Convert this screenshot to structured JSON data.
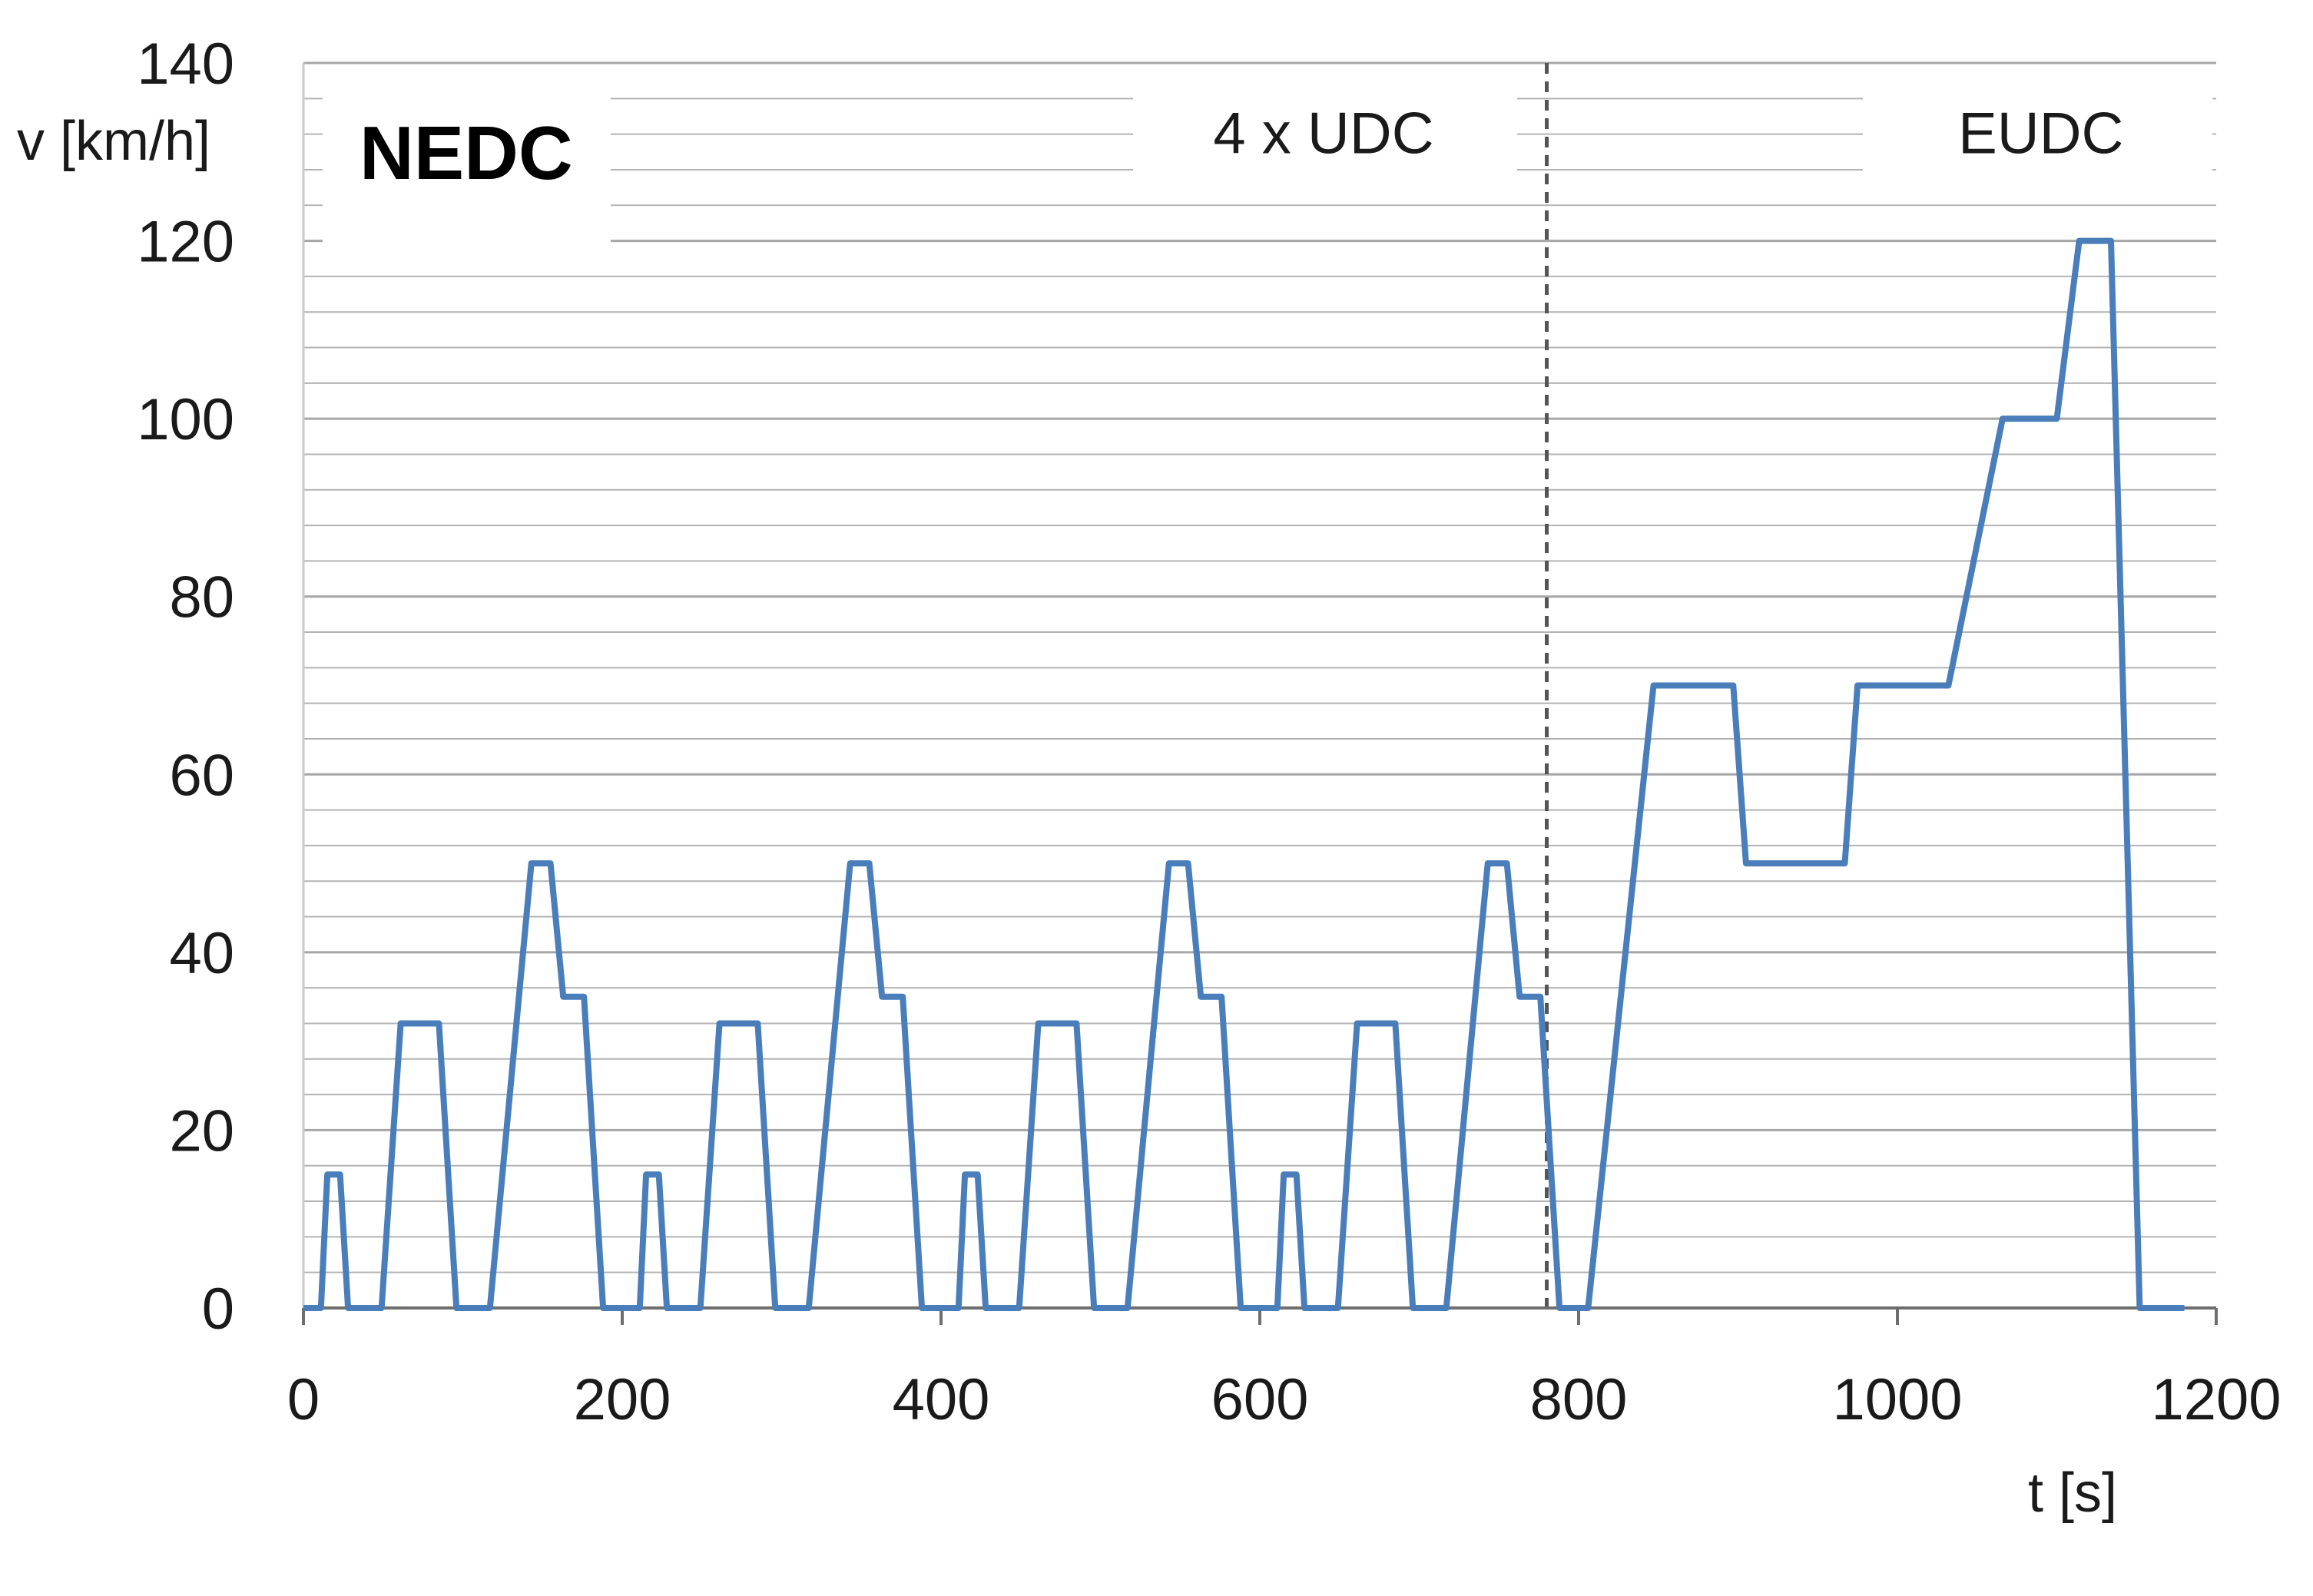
{
  "chart_data": {
    "type": "line",
    "title": "NEDC",
    "xlabel": "t [s]",
    "ylabel": "v [km/h]",
    "xlim": [
      0,
      1200
    ],
    "ylim": [
      0,
      140
    ],
    "x_ticks": [
      "0",
      "200",
      "400",
      "600",
      "800",
      "1000",
      "1200"
    ],
    "y_ticks": [
      "0",
      "20",
      "40",
      "60",
      "80",
      "100",
      "120",
      "140"
    ],
    "grid": true,
    "phase_divider_x": 780,
    "annotations": [
      {
        "text": "4 x UDC",
        "x": 640,
        "y": 132
      },
      {
        "text": "EUDC",
        "x": 1090,
        "y": 132
      }
    ],
    "colors": {
      "line": "#4a7ebb",
      "grid": "#b3b3b3",
      "divider": "#555555"
    },
    "series": [
      {
        "x": [
          0,
          11,
          15,
          23,
          28,
          49,
          61,
          85,
          96,
          117,
          143,
          155,
          163,
          176,
          188,
          195,
          206,
          211,
          215,
          223,
          228,
          249,
          261,
          285,
          296,
          317,
          343,
          355,
          363,
          376,
          388,
          395,
          406,
          411,
          415,
          423,
          428,
          449,
          461,
          485,
          496,
          517,
          543,
          555,
          563,
          576,
          588,
          595,
          606,
          611,
          615,
          623,
          628,
          649,
          661,
          685,
          696,
          717,
          743,
          755,
          763,
          776,
          788,
          795,
          806,
          847,
          897,
          905,
          967,
          975,
          985,
          1032,
          1066,
          1100,
          1114,
          1134,
          1152,
          1166,
          1180
        ],
        "y": [
          0,
          0,
          15,
          15,
          0,
          0,
          32,
          32,
          0,
          0,
          50,
          50,
          35,
          35,
          0,
          0,
          0,
          0,
          15,
          15,
          0,
          0,
          32,
          32,
          0,
          0,
          50,
          50,
          35,
          35,
          0,
          0,
          0,
          0,
          15,
          15,
          0,
          0,
          32,
          32,
          0,
          0,
          50,
          50,
          35,
          35,
          0,
          0,
          0,
          0,
          15,
          15,
          0,
          0,
          32,
          32,
          0,
          0,
          50,
          50,
          35,
          35,
          0,
          0,
          0,
          70,
          70,
          50,
          50,
          70,
          70,
          70,
          100,
          100,
          120,
          120,
          0,
          0,
          0
        ]
      }
    ]
  }
}
